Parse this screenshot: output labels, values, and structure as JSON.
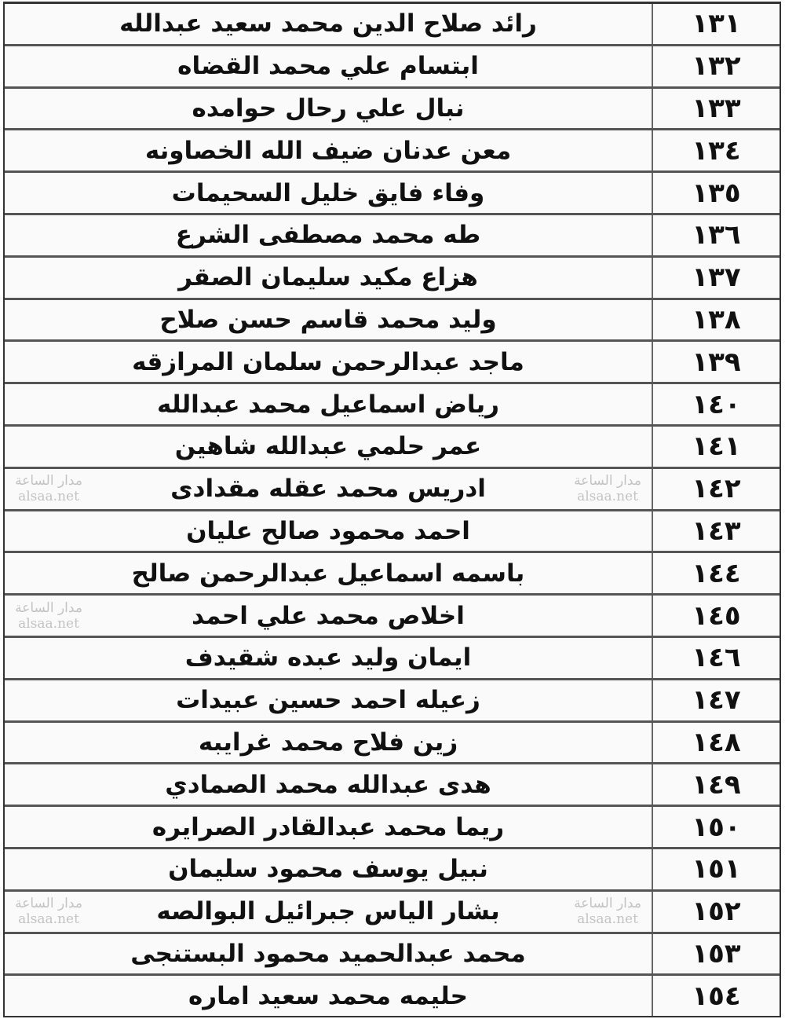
{
  "rows": [
    {
      "num": "١٣١",
      "name": "رائد صلاح الدين محمد سعيد عبدالله"
    },
    {
      "num": "١٣٢",
      "name": "ابتسام علي محمد القضاه"
    },
    {
      "num": "١٣٣",
      "name": "نبال علي رحال حوامده"
    },
    {
      "num": "١٣٤",
      "name": "معن عدنان ضيف الله الخصاونه"
    },
    {
      "num": "١٣٥",
      "name": "وفاء فايق خليل السحيمات"
    },
    {
      "num": "١٣٦",
      "name": "طه محمد مصطفى الشرع"
    },
    {
      "num": "١٣٧",
      "name": "هزاع مكيد سليمان الصقر"
    },
    {
      "num": "١٣٨",
      "name": "وليد محمد قاسم حسن صلاح"
    },
    {
      "num": "١٣٩",
      "name": "ماجد عبدالرحمن سلمان المرازقه"
    },
    {
      "num": "١٤٠",
      "name": "رياض اسماعيل محمد عبدالله"
    },
    {
      "num": "١٤١",
      "name": "عمر حلمي عبدالله شاهين"
    },
    {
      "num": "١٤٢",
      "name": "ادريس محمد عقله مقدادى"
    },
    {
      "num": "١٤٣",
      "name": "احمد محمود صالح عليان"
    },
    {
      "num": "١٤٤",
      "name": "باسمه اسماعيل عبدالرحمن صالح"
    },
    {
      "num": "١٤٥",
      "name": "اخلاص محمد علي احمد"
    },
    {
      "num": "١٤٦",
      "name": "ايمان وليد عبده شقيدف"
    },
    {
      "num": "١٤٧",
      "name": "زعيله احمد حسين عبيدات"
    },
    {
      "num": "١٤٨",
      "name": "زين فلاح محمد غرايبه"
    },
    {
      "num": "١٤٩",
      "name": "هدى عبدالله محمد الصمادي"
    },
    {
      "num": "١٥٠",
      "name": "ريما محمد عبدالقادر الصرايره"
    },
    {
      "num": "١٥١",
      "name": "نبيل يوسف محمود سليمان"
    },
    {
      "num": "١٥٢",
      "name": "بشار الياس جبرائيل البوالصه"
    },
    {
      "num": "١٥٣",
      "name": "محمد عبدالحميد محمود البستنجى"
    },
    {
      "num": "١٥٤",
      "name": "حليمه محمد سعيد اماره"
    }
  ],
  "watermark": {
    "line1": "مدار الساعة",
    "line2": "alsaa.net"
  }
}
